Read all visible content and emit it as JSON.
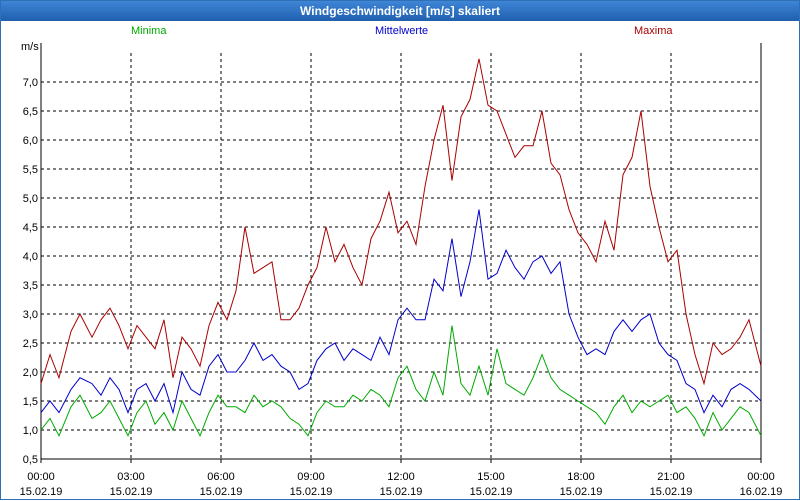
{
  "window": {
    "title": "Windgeschwindigkeit [m/s] skaliert"
  },
  "colors": {
    "min": "#00aa00",
    "mean": "#0000cc",
    "max": "#aa0000",
    "grid": "#000000",
    "title_bg": "#2a6fc2"
  },
  "legend": {
    "min": "Minima",
    "mean": "Mittelwerte",
    "max": "Maxima"
  },
  "chart_data": {
    "type": "line",
    "title": "Windgeschwindigkeit [m/s] skaliert",
    "ylabel": "m/s",
    "ylim": [
      0.5,
      7.5
    ],
    "y_ticks": [
      "0,5",
      "1,0",
      "1,5",
      "2,0",
      "2,5",
      "3,0",
      "3,5",
      "4,0",
      "4,5",
      "5,0",
      "5,5",
      "6,0",
      "6,5",
      "7,0"
    ],
    "xlim_hours": [
      0,
      24
    ],
    "x_ticks": [
      {
        "time": "00:00",
        "date": "15.02.19"
      },
      {
        "time": "03:00",
        "date": "15.02.19"
      },
      {
        "time": "06:00",
        "date": "15.02.19"
      },
      {
        "time": "09:00",
        "date": "15.02.19"
      },
      {
        "time": "12:00",
        "date": "15.02.19"
      },
      {
        "time": "15:00",
        "date": "15.02.19"
      },
      {
        "time": "18:00",
        "date": "15.02.19"
      },
      {
        "time": "21:00",
        "date": "15.02.19"
      },
      {
        "time": "00:00",
        "date": "16.02.19"
      }
    ],
    "series": [
      {
        "name": "Minima",
        "points": [
          [
            0,
            1.0
          ],
          [
            0.3,
            1.2
          ],
          [
            0.6,
            0.9
          ],
          [
            1.0,
            1.4
          ],
          [
            1.3,
            1.6
          ],
          [
            1.7,
            1.2
          ],
          [
            2.0,
            1.3
          ],
          [
            2.3,
            1.5
          ],
          [
            2.6,
            1.2
          ],
          [
            2.9,
            0.9
          ],
          [
            3.2,
            1.3
          ],
          [
            3.5,
            1.5
          ],
          [
            3.8,
            1.1
          ],
          [
            4.1,
            1.3
          ],
          [
            4.4,
            1.0
          ],
          [
            4.7,
            1.5
          ],
          [
            5.0,
            1.2
          ],
          [
            5.3,
            0.9
          ],
          [
            5.6,
            1.3
          ],
          [
            5.9,
            1.6
          ],
          [
            6.2,
            1.4
          ],
          [
            6.5,
            1.4
          ],
          [
            6.8,
            1.3
          ],
          [
            7.1,
            1.6
          ],
          [
            7.4,
            1.4
          ],
          [
            7.7,
            1.5
          ],
          [
            8.0,
            1.4
          ],
          [
            8.3,
            1.2
          ],
          [
            8.6,
            1.1
          ],
          [
            8.9,
            0.9
          ],
          [
            9.2,
            1.3
          ],
          [
            9.5,
            1.5
          ],
          [
            9.8,
            1.4
          ],
          [
            10.1,
            1.4
          ],
          [
            10.4,
            1.6
          ],
          [
            10.7,
            1.5
          ],
          [
            11.0,
            1.7
          ],
          [
            11.3,
            1.6
          ],
          [
            11.6,
            1.4
          ],
          [
            11.9,
            1.9
          ],
          [
            12.2,
            2.1
          ],
          [
            12.5,
            1.7
          ],
          [
            12.8,
            1.5
          ],
          [
            13.1,
            2.0
          ],
          [
            13.4,
            1.6
          ],
          [
            13.7,
            2.8
          ],
          [
            14.0,
            1.8
          ],
          [
            14.3,
            1.6
          ],
          [
            14.6,
            2.1
          ],
          [
            14.9,
            1.6
          ],
          [
            15.2,
            2.4
          ],
          [
            15.5,
            1.8
          ],
          [
            15.8,
            1.7
          ],
          [
            16.1,
            1.6
          ],
          [
            16.4,
            1.9
          ],
          [
            16.7,
            2.3
          ],
          [
            17.0,
            1.9
          ],
          [
            17.3,
            1.7
          ],
          [
            17.6,
            1.6
          ],
          [
            17.9,
            1.5
          ],
          [
            18.2,
            1.4
          ],
          [
            18.5,
            1.3
          ],
          [
            18.8,
            1.1
          ],
          [
            19.1,
            1.4
          ],
          [
            19.4,
            1.6
          ],
          [
            19.7,
            1.3
          ],
          [
            20.0,
            1.5
          ],
          [
            20.3,
            1.4
          ],
          [
            20.6,
            1.5
          ],
          [
            20.9,
            1.6
          ],
          [
            21.2,
            1.3
          ],
          [
            21.5,
            1.4
          ],
          [
            21.8,
            1.2
          ],
          [
            22.1,
            0.9
          ],
          [
            22.4,
            1.3
          ],
          [
            22.7,
            1.0
          ],
          [
            23.0,
            1.2
          ],
          [
            23.3,
            1.4
          ],
          [
            23.6,
            1.3
          ],
          [
            24.0,
            0.9
          ]
        ]
      },
      {
        "name": "Mittelwerte",
        "points": [
          [
            0,
            1.3
          ],
          [
            0.3,
            1.5
          ],
          [
            0.6,
            1.3
          ],
          [
            1.0,
            1.7
          ],
          [
            1.3,
            1.9
          ],
          [
            1.7,
            1.8
          ],
          [
            2.0,
            1.6
          ],
          [
            2.3,
            1.9
          ],
          [
            2.6,
            1.7
          ],
          [
            2.9,
            1.3
          ],
          [
            3.2,
            1.7
          ],
          [
            3.5,
            1.8
          ],
          [
            3.8,
            1.5
          ],
          [
            4.1,
            1.8
          ],
          [
            4.4,
            1.3
          ],
          [
            4.7,
            2.0
          ],
          [
            5.0,
            1.7
          ],
          [
            5.3,
            1.6
          ],
          [
            5.6,
            2.1
          ],
          [
            5.9,
            2.3
          ],
          [
            6.2,
            2.0
          ],
          [
            6.5,
            2.0
          ],
          [
            6.8,
            2.2
          ],
          [
            7.1,
            2.5
          ],
          [
            7.4,
            2.2
          ],
          [
            7.7,
            2.3
          ],
          [
            8.0,
            2.1
          ],
          [
            8.3,
            2.0
          ],
          [
            8.6,
            1.7
          ],
          [
            8.9,
            1.8
          ],
          [
            9.2,
            2.2
          ],
          [
            9.5,
            2.4
          ],
          [
            9.8,
            2.5
          ],
          [
            10.1,
            2.2
          ],
          [
            10.4,
            2.4
          ],
          [
            10.7,
            2.3
          ],
          [
            11.0,
            2.2
          ],
          [
            11.3,
            2.6
          ],
          [
            11.6,
            2.3
          ],
          [
            11.9,
            2.9
          ],
          [
            12.2,
            3.1
          ],
          [
            12.5,
            2.9
          ],
          [
            12.8,
            2.9
          ],
          [
            13.1,
            3.6
          ],
          [
            13.4,
            3.4
          ],
          [
            13.7,
            4.3
          ],
          [
            14.0,
            3.3
          ],
          [
            14.3,
            3.9
          ],
          [
            14.6,
            4.8
          ],
          [
            14.9,
            3.6
          ],
          [
            15.2,
            3.7
          ],
          [
            15.5,
            4.1
          ],
          [
            15.8,
            3.8
          ],
          [
            16.1,
            3.6
          ],
          [
            16.4,
            3.9
          ],
          [
            16.7,
            4.0
          ],
          [
            17.0,
            3.7
          ],
          [
            17.3,
            3.9
          ],
          [
            17.6,
            3.0
          ],
          [
            17.9,
            2.6
          ],
          [
            18.2,
            2.3
          ],
          [
            18.5,
            2.4
          ],
          [
            18.8,
            2.3
          ],
          [
            19.1,
            2.7
          ],
          [
            19.4,
            2.9
          ],
          [
            19.7,
            2.7
          ],
          [
            20.0,
            2.9
          ],
          [
            20.3,
            3.0
          ],
          [
            20.6,
            2.5
          ],
          [
            20.9,
            2.3
          ],
          [
            21.2,
            2.2
          ],
          [
            21.5,
            1.8
          ],
          [
            21.8,
            1.7
          ],
          [
            22.1,
            1.3
          ],
          [
            22.4,
            1.6
          ],
          [
            22.7,
            1.4
          ],
          [
            23.0,
            1.7
          ],
          [
            23.3,
            1.8
          ],
          [
            23.6,
            1.7
          ],
          [
            24.0,
            1.5
          ]
        ]
      },
      {
        "name": "Maxima",
        "points": [
          [
            0,
            1.8
          ],
          [
            0.3,
            2.3
          ],
          [
            0.6,
            1.9
          ],
          [
            1.0,
            2.7
          ],
          [
            1.3,
            3.0
          ],
          [
            1.7,
            2.6
          ],
          [
            2.0,
            2.9
          ],
          [
            2.3,
            3.1
          ],
          [
            2.6,
            2.8
          ],
          [
            2.9,
            2.4
          ],
          [
            3.2,
            2.8
          ],
          [
            3.5,
            2.6
          ],
          [
            3.8,
            2.4
          ],
          [
            4.1,
            2.9
          ],
          [
            4.4,
            1.9
          ],
          [
            4.7,
            2.6
          ],
          [
            5.0,
            2.4
          ],
          [
            5.3,
            2.1
          ],
          [
            5.6,
            2.8
          ],
          [
            5.9,
            3.2
          ],
          [
            6.2,
            2.9
          ],
          [
            6.5,
            3.4
          ],
          [
            6.8,
            4.5
          ],
          [
            7.1,
            3.7
          ],
          [
            7.4,
            3.8
          ],
          [
            7.7,
            3.9
          ],
          [
            8.0,
            2.9
          ],
          [
            8.3,
            2.9
          ],
          [
            8.6,
            3.1
          ],
          [
            8.9,
            3.5
          ],
          [
            9.2,
            3.8
          ],
          [
            9.5,
            4.5
          ],
          [
            9.8,
            3.9
          ],
          [
            10.1,
            4.2
          ],
          [
            10.4,
            3.8
          ],
          [
            10.7,
            3.5
          ],
          [
            11.0,
            4.3
          ],
          [
            11.3,
            4.6
          ],
          [
            11.6,
            5.1
          ],
          [
            11.9,
            4.4
          ],
          [
            12.2,
            4.6
          ],
          [
            12.5,
            4.2
          ],
          [
            12.8,
            5.2
          ],
          [
            13.1,
            6.0
          ],
          [
            13.4,
            6.6
          ],
          [
            13.7,
            5.3
          ],
          [
            14.0,
            6.4
          ],
          [
            14.3,
            6.7
          ],
          [
            14.6,
            7.4
          ],
          [
            14.9,
            6.6
          ],
          [
            15.2,
            6.5
          ],
          [
            15.5,
            6.1
          ],
          [
            15.8,
            5.7
          ],
          [
            16.1,
            5.9
          ],
          [
            16.4,
            5.9
          ],
          [
            16.7,
            6.5
          ],
          [
            17.0,
            5.6
          ],
          [
            17.3,
            5.4
          ],
          [
            17.6,
            4.8
          ],
          [
            17.9,
            4.4
          ],
          [
            18.2,
            4.2
          ],
          [
            18.5,
            3.9
          ],
          [
            18.8,
            4.6
          ],
          [
            19.1,
            4.1
          ],
          [
            19.4,
            5.4
          ],
          [
            19.7,
            5.7
          ],
          [
            20.0,
            6.5
          ],
          [
            20.3,
            5.2
          ],
          [
            20.6,
            4.5
          ],
          [
            20.9,
            3.9
          ],
          [
            21.2,
            4.1
          ],
          [
            21.5,
            3.0
          ],
          [
            21.8,
            2.3
          ],
          [
            22.1,
            1.8
          ],
          [
            22.4,
            2.5
          ],
          [
            22.7,
            2.3
          ],
          [
            23.0,
            2.4
          ],
          [
            23.3,
            2.6
          ],
          [
            23.6,
            2.9
          ],
          [
            24.0,
            2.1
          ]
        ]
      }
    ]
  }
}
